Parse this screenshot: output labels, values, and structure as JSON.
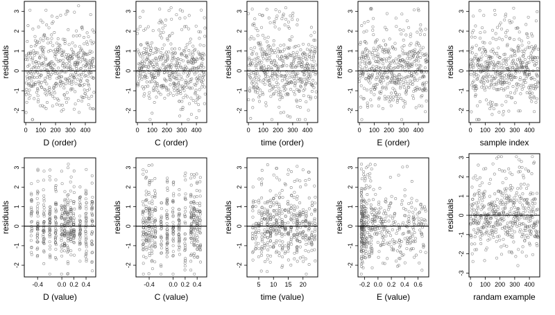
{
  "chart_data": [
    {
      "type": "scatter",
      "xlabel": "D (order)",
      "ylabel": "residuals",
      "xlim": [
        -10,
        470
      ],
      "ylim": [
        -2.6,
        3.5
      ],
      "xticks": [
        0,
        100,
        200,
        300,
        400
      ],
      "xtick_labels": [
        "0",
        "100",
        "200",
        "300",
        "400"
      ],
      "yticks": [
        -2,
        -1,
        0,
        1,
        2,
        3
      ],
      "ytick_labels": [
        "-2",
        "-1",
        "0",
        "1",
        "2",
        "3"
      ],
      "hline": 0,
      "points": {
        "kind": "generated",
        "x_mode": "order",
        "n": 460,
        "seed": 11
      }
    },
    {
      "type": "scatter",
      "xlabel": "C (order)",
      "ylabel": "residuals",
      "xlim": [
        -10,
        470
      ],
      "ylim": [
        -2.6,
        3.5
      ],
      "xticks": [
        0,
        100,
        200,
        300,
        400
      ],
      "xtick_labels": [
        "0",
        "100",
        "200",
        "300",
        "400"
      ],
      "yticks": [
        -2,
        -1,
        0,
        1,
        2,
        3
      ],
      "ytick_labels": [
        "-2",
        "-1",
        "0",
        "1",
        "2",
        "3"
      ],
      "hline": 0,
      "points": {
        "kind": "generated",
        "x_mode": "order",
        "n": 460,
        "seed": 23
      }
    },
    {
      "type": "scatter",
      "xlabel": "time (order)",
      "ylabel": "residuals",
      "xlim": [
        -10,
        470
      ],
      "ylim": [
        -2.6,
        3.5
      ],
      "xticks": [
        0,
        100,
        200,
        300,
        400
      ],
      "xtick_labels": [
        "0",
        "100",
        "200",
        "300",
        "400"
      ],
      "yticks": [
        -2,
        -1,
        0,
        1,
        2,
        3
      ],
      "ytick_labels": [
        "-2",
        "-1",
        "0",
        "1",
        "2",
        "3"
      ],
      "hline": 0,
      "points": {
        "kind": "generated",
        "x_mode": "order",
        "n": 460,
        "seed": 37
      }
    },
    {
      "type": "scatter",
      "xlabel": "E (order)",
      "ylabel": "residuals",
      "xlim": [
        -10,
        470
      ],
      "ylim": [
        -2.6,
        3.5
      ],
      "xticks": [
        0,
        100,
        200,
        300,
        400
      ],
      "xtick_labels": [
        "0",
        "100",
        "200",
        "300",
        "400"
      ],
      "yticks": [
        -2,
        -1,
        0,
        1,
        2,
        3
      ],
      "ytick_labels": [
        "-2",
        "-1",
        "0",
        "1",
        "2",
        "3"
      ],
      "hline": 0,
      "points": {
        "kind": "generated",
        "x_mode": "order",
        "n": 460,
        "seed": 41
      }
    },
    {
      "type": "scatter",
      "xlabel": "sample index",
      "ylabel": "residuals",
      "xlim": [
        -10,
        470
      ],
      "ylim": [
        -2.6,
        3.5
      ],
      "xticks": [
        0,
        100,
        200,
        300,
        400
      ],
      "xtick_labels": [
        "0",
        "100",
        "200",
        "300",
        "400"
      ],
      "yticks": [
        -2,
        -1,
        0,
        1,
        2,
        3
      ],
      "ytick_labels": [
        "-2",
        "-1",
        "0",
        "1",
        "2",
        "3"
      ],
      "hline": 0,
      "points": {
        "kind": "generated",
        "x_mode": "order",
        "n": 460,
        "seed": 53
      }
    },
    {
      "type": "scatter",
      "xlabel": "D (value)",
      "ylabel": "residuals",
      "xlim": [
        -0.62,
        0.56
      ],
      "ylim": [
        -2.6,
        3.5
      ],
      "xticks": [
        -0.4,
        0,
        0.2,
        0.4
      ],
      "xtick_labels": [
        "-0.4",
        "0.0",
        "0.2",
        "0.4"
      ],
      "yticks": [
        -2,
        -1,
        0,
        1,
        2,
        3
      ],
      "ytick_labels": [
        "-2",
        "-1",
        "0",
        "1",
        "2",
        "3"
      ],
      "hline": 0,
      "points": {
        "kind": "generated",
        "x_mode": "groups",
        "groups": [
          -0.5,
          -0.4,
          -0.3,
          -0.2,
          -0.1,
          0.0,
          0.05,
          0.1,
          0.15,
          0.2,
          0.3,
          0.4,
          0.5
        ],
        "jitter": 0.008,
        "n": 460,
        "seed": 61
      }
    },
    {
      "type": "scatter",
      "xlabel": "C (value)",
      "ylabel": "residuals",
      "xlim": [
        -0.62,
        0.56
      ],
      "ylim": [
        -2.6,
        3.5
      ],
      "xticks": [
        -0.4,
        0,
        0.2,
        0.4
      ],
      "xtick_labels": [
        "-0.4",
        "0.0",
        "0.2",
        "0.4"
      ],
      "yticks": [
        -2,
        -1,
        0,
        1,
        2,
        3
      ],
      "ytick_labels": [
        "-2",
        "-1",
        "0",
        "1",
        "2",
        "3"
      ],
      "hline": 0,
      "points": {
        "kind": "generated",
        "x_mode": "groups",
        "groups": [
          -0.5,
          -0.45,
          -0.4,
          -0.35,
          -0.3,
          -0.2,
          -0.1,
          0.0,
          0.1,
          0.2,
          0.3,
          0.35,
          0.4,
          0.45
        ],
        "jitter": 0.008,
        "n": 460,
        "seed": 67
      }
    },
    {
      "type": "scatter",
      "xlabel": "time (value)",
      "ylabel": "residuals",
      "xlim": [
        1,
        25
      ],
      "ylim": [
        -2.6,
        3.5
      ],
      "xticks": [
        5,
        10,
        15,
        20
      ],
      "xtick_labels": [
        "5",
        "10",
        "15",
        "20"
      ],
      "yticks": [
        -2,
        -1,
        0,
        1,
        2,
        3
      ],
      "ytick_labels": [
        "-2",
        "-1",
        "0",
        "1",
        "2",
        "3"
      ],
      "hline": 0,
      "points": {
        "kind": "generated",
        "x_mode": "groups",
        "groups": [
          3,
          4,
          5,
          6,
          7,
          8,
          9,
          10,
          11,
          12,
          13,
          14,
          15,
          16,
          17,
          18,
          19,
          20,
          21,
          22,
          23,
          24
        ],
        "jitter": 0.15,
        "n": 460,
        "seed": 71
      }
    },
    {
      "type": "scatter",
      "xlabel": "E (value)",
      "ylabel": "residuals",
      "xlim": [
        -0.3,
        0.76
      ],
      "ylim": [
        -2.6,
        3.5
      ],
      "xticks": [
        -0.2,
        0,
        0.2,
        0.4,
        0.6
      ],
      "xtick_labels": [
        "-0.2",
        "0.0",
        "0.2",
        "0.4",
        "0.6"
      ],
      "yticks": [
        -2,
        -1,
        0,
        1,
        2,
        3
      ],
      "ytick_labels": [
        "-2",
        "-1",
        "0",
        "1",
        "2",
        "3"
      ],
      "hline": 0,
      "points": {
        "kind": "generated",
        "x_mode": "skewed",
        "xmin": -0.25,
        "xmax": 0.72,
        "n": 460,
        "seed": 79
      }
    },
    {
      "type": "scatter",
      "xlabel": "randam example",
      "ylabel": "residuals",
      "xlim": [
        -10,
        470
      ],
      "ylim": [
        -3.2,
        3.2
      ],
      "xticks": [
        0,
        100,
        200,
        300,
        400
      ],
      "xtick_labels": [
        "0",
        "100",
        "200",
        "300",
        "400"
      ],
      "yticks": [
        -3,
        -2,
        -1,
        0,
        1,
        2,
        3
      ],
      "ytick_labels": [
        "-3",
        "-2",
        "-1",
        "0",
        "1",
        "2",
        "3"
      ],
      "hline": 0,
      "points": {
        "kind": "generated",
        "x_mode": "order",
        "n": 460,
        "seed": 83
      }
    }
  ],
  "style": {
    "point_color": "#5a5a5a",
    "axis_color": "#000000",
    "background": "#ffffff"
  }
}
